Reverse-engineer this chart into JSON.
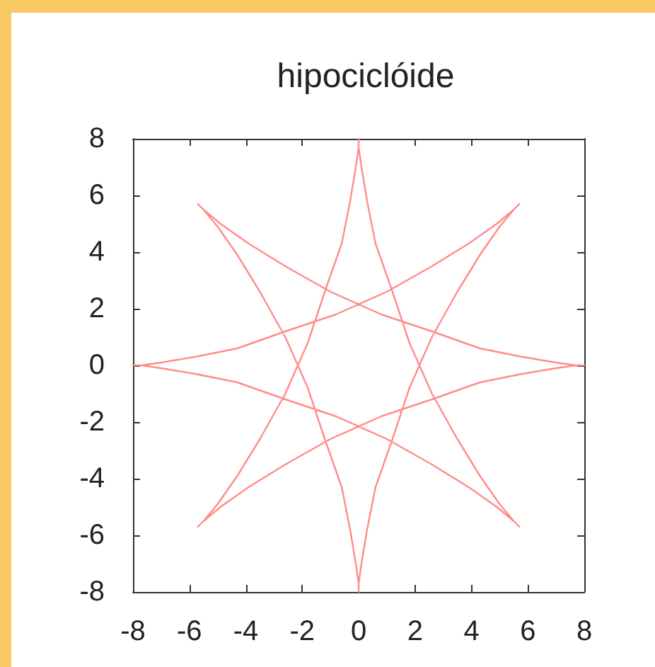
{
  "chart_data": {
    "type": "line",
    "title": "hipociclóide",
    "x": [
      5.7,
      5.5,
      4.9,
      3.9,
      2.6,
      1,
      -0.8,
      -2.6,
      -4.3,
      -5.8,
      -7,
      -7.7,
      -8,
      -7.7,
      -7,
      -5.8,
      -4.3,
      -2.6,
      -0.8,
      1,
      2.6,
      3.9,
      4.9,
      5.5,
      5.7,
      5.5,
      5,
      4.3,
      3.5,
      2.6,
      1.8,
      1.2,
      0.6,
      0.3,
      0.1,
      0,
      0,
      0,
      -0.1,
      -0.3,
      -0.6,
      -1.2,
      -1.8,
      -2.6,
      -3.5,
      -4.3,
      -5,
      -5.5,
      -5.7,
      -5.5,
      -4.9,
      -3.9,
      -2.6,
      -1,
      0.8,
      2.6,
      4.3,
      5.8,
      7,
      7.7,
      8,
      7.7,
      7,
      5.8,
      4.3,
      2.6,
      0.8,
      -1,
      -2.6,
      -3.9,
      -4.9,
      -5.5,
      -5.7,
      -5.5,
      -5,
      -4.3,
      -3.5,
      -2.6,
      -1.8,
      -1.2,
      -0.6,
      -0.3,
      -0.1,
      0,
      0,
      0,
      0.1,
      0.3,
      0.6,
      1.2,
      1.8,
      2.6,
      3.5,
      4.3,
      5,
      5.5
    ],
    "values": [
      5.7,
      5.5,
      5,
      4.3,
      3.5,
      2.6,
      1.8,
      1.2,
      0.6,
      0.3,
      0.1,
      0,
      0,
      0,
      -0.1,
      -0.3,
      -0.6,
      -1.2,
      -1.8,
      -2.6,
      -3.5,
      -4.3,
      -5,
      -5.5,
      -5.7,
      -5.5,
      -4.9,
      -3.9,
      -2.6,
      -1,
      0.8,
      2.6,
      4.3,
      5.8,
      7,
      7.7,
      8,
      7.7,
      7,
      5.8,
      4.3,
      2.6,
      0.8,
      -1,
      -2.6,
      -3.9,
      -4.9,
      -5.5,
      -5.7,
      -5.5,
      -5,
      -4.3,
      -3.5,
      -2.6,
      -1.8,
      -1.2,
      -0.6,
      -0.3,
      -0.1,
      0,
      0,
      0,
      0.1,
      0.3,
      0.6,
      1.2,
      1.8,
      2.6,
      3.5,
      4.3,
      5,
      5.5,
      5.7,
      5.5,
      4.9,
      3.9,
      2.6,
      1,
      -0.8,
      -2.6,
      -4.3,
      -5.8,
      -7,
      -7.7,
      -8,
      -7.7,
      -7,
      -5.8,
      -4.3,
      -2.6,
      -0.8,
      1,
      2.6,
      3.9,
      4.9,
      5.5
    ],
    "color": "#ff8c8c",
    "xlim": [
      -8,
      8
    ],
    "ylim": [
      -8,
      8
    ],
    "xticks": [
      -8,
      -6,
      -4,
      -2,
      0,
      2,
      4,
      6,
      8
    ],
    "yticks": [
      -8,
      -6,
      -4,
      -2,
      0,
      2,
      4,
      6,
      8
    ],
    "grid": false,
    "marker": "none",
    "line_style": "solid"
  }
}
